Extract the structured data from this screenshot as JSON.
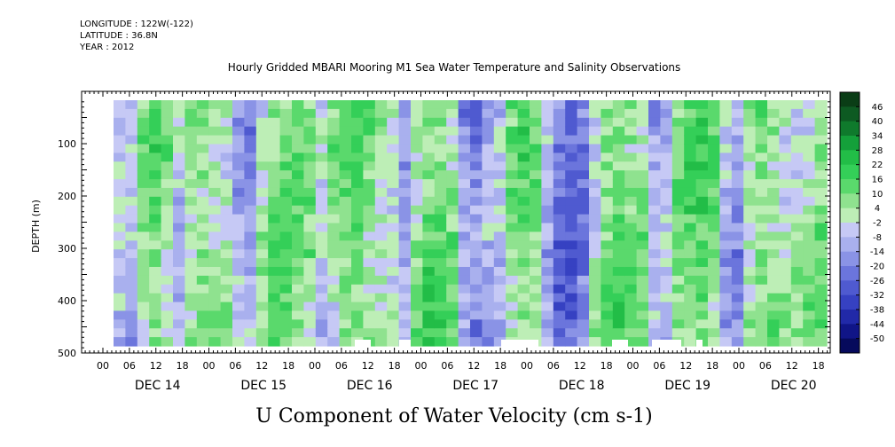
{
  "header": {
    "longitude": "LONGITUDE : 122W(-122)",
    "latitude": "LATITUDE : 36.8N",
    "year": "YEAR : 2012"
  },
  "colors": {
    "blue_dark": "#2b3fd6",
    "blue_light": "#aab1ee",
    "green_light": "#8fe08f",
    "green": "#2ecb52",
    "green_dark": "#0d6e2a"
  },
  "chart_data": {
    "type": "heatmap",
    "title": "Hourly Gridded MBARI Mooring M1 Sea Water Temperature and Salinity Observations",
    "xlabel": "U Component of Water Velocity (cm s-1)",
    "ylabel": "DEPTH (m)",
    "yticks": [
      100,
      200,
      300,
      400,
      500
    ],
    "ylim": [
      500,
      0
    ],
    "x_hour_ticks": [
      "00",
      "06",
      "12",
      "18",
      "00",
      "06",
      "12",
      "18",
      "00",
      "06",
      "12",
      "18",
      "00",
      "06",
      "12",
      "18",
      "00",
      "06",
      "12",
      "18",
      "00",
      "06",
      "12",
      "18",
      "00",
      "06",
      "12",
      "18"
    ],
    "x_day_labels": [
      "DEC 14",
      "DEC 15",
      "DEC 16",
      "DEC 17",
      "DEC 18",
      "DEC 19",
      "DEC 20"
    ],
    "colorbar": {
      "labels": [
        "46",
        "40",
        "34",
        "28",
        "22",
        "16",
        "10",
        "4",
        "-2",
        "-8",
        "-14",
        "-20",
        "-26",
        "-32",
        "-38",
        "-44",
        "-50"
      ],
      "colors": [
        "#0a3d16",
        "#0d5a22",
        "#0f7a2c",
        "#14a03a",
        "#22bd47",
        "#34cf58",
        "#5ad96c",
        "#8fe28f",
        "#bdeeb6",
        "#c6c9f5",
        "#a9b0ee",
        "#8a93e6",
        "#6b75dc",
        "#4f5ad0",
        "#3641c2",
        "#2129a8",
        "#101587",
        "#060a5c"
      ]
    },
    "column_means": [
      -4,
      -6,
      8,
      14,
      10,
      -2,
      8,
      12,
      10,
      6,
      -6,
      -10,
      4,
      12,
      14,
      10,
      8,
      -4,
      6,
      14,
      16,
      12,
      8,
      4,
      -6,
      10,
      16,
      14,
      8,
      -12,
      -16,
      -10,
      -6,
      8,
      14,
      10,
      -4,
      -18,
      -22,
      -14,
      4,
      14,
      16,
      12,
      8,
      -8,
      -6,
      10,
      14,
      16,
      12,
      -6,
      -10,
      8,
      12,
      10,
      6,
      4,
      8,
      12
    ]
  }
}
